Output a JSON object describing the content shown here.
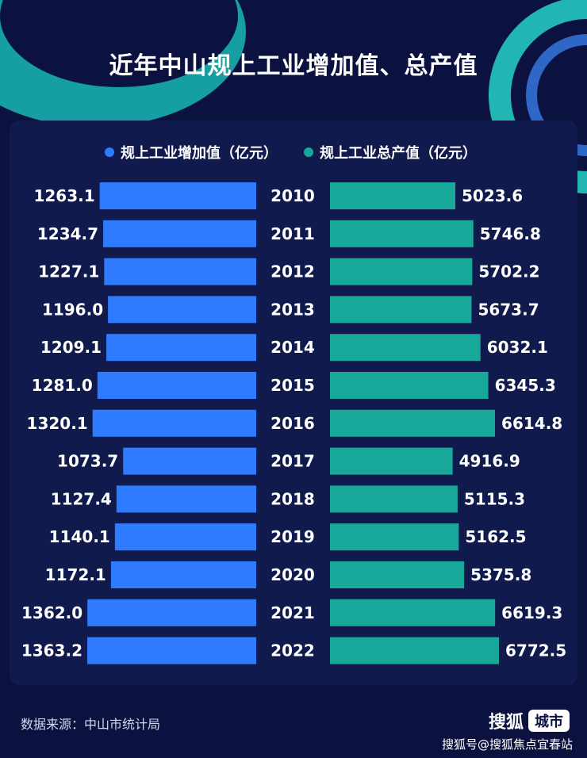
{
  "title": "近年中山规上工业增加值、总产值",
  "legend": {
    "left": {
      "label": "规上工业增加值（亿元）",
      "color": "#2f7bff"
    },
    "right": {
      "label": "规上工业总产值（亿元）",
      "color": "#17a89a"
    }
  },
  "chart_data": {
    "type": "bar",
    "orientation": "horizontal-butterfly",
    "categories": [
      "2010",
      "2011",
      "2012",
      "2013",
      "2014",
      "2015",
      "2016",
      "2017",
      "2018",
      "2019",
      "2020",
      "2021",
      "2022"
    ],
    "series": [
      {
        "name": "规上工业增加值（亿元）",
        "color": "#2f7bff",
        "values": [
          1263.1,
          1234.7,
          1227.1,
          1196.0,
          1209.1,
          1281.0,
          1320.1,
          1073.7,
          1127.4,
          1140.1,
          1172.1,
          1362.0,
          1363.2
        ],
        "labels": [
          "1263.1",
          "1234.7",
          "1227.1",
          "1196.0",
          "1209.1",
          "1281.0",
          "1320.1",
          "1073.7",
          "1127.4",
          "1140.1",
          "1172.1",
          "1362.0",
          "1363.2"
        ]
      },
      {
        "name": "规上工业总产值（亿元）",
        "color": "#17a89a",
        "values": [
          5023.6,
          5746.8,
          5702.2,
          5673.7,
          6032.1,
          6345.3,
          6614.8,
          4916.9,
          5115.3,
          5162.5,
          5375.8,
          6619.3,
          6772.5
        ],
        "labels": [
          "5023.6",
          "5746.8",
          "5702.2",
          "5673.7",
          "6032.1",
          "6345.3",
          "6614.8",
          "4916.9",
          "5115.3",
          "5162.5",
          "5375.8",
          "6619.3",
          "6772.5"
        ]
      }
    ]
  },
  "footer": {
    "source": "数据来源：中山市统计局",
    "brand_name": "搜狐",
    "brand_tag": "城市",
    "watermark": "搜狐号@搜狐焦点宜春站"
  },
  "colors": {
    "background": "#0b1240",
    "panel": "#111a4d",
    "accent_teal": "#21c7c0"
  }
}
